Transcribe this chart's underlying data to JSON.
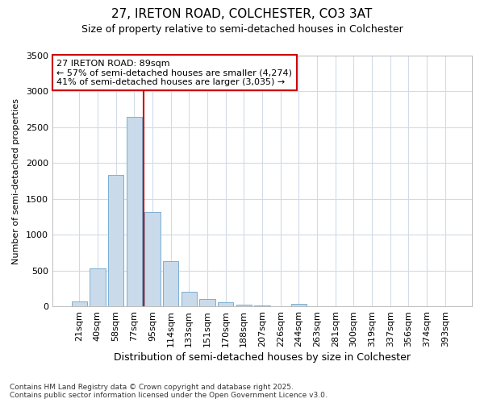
{
  "title1": "27, IRETON ROAD, COLCHESTER, CO3 3AT",
  "title2": "Size of property relative to semi-detached houses in Colchester",
  "xlabel": "Distribution of semi-detached houses by size in Colchester",
  "ylabel": "Number of semi-detached properties",
  "footer1": "Contains HM Land Registry data © Crown copyright and database right 2025.",
  "footer2": "Contains public sector information licensed under the Open Government Licence v3.0.",
  "bins": [
    "21sqm",
    "40sqm",
    "58sqm",
    "77sqm",
    "95sqm",
    "114sqm",
    "133sqm",
    "151sqm",
    "170sqm",
    "188sqm",
    "207sqm",
    "226sqm",
    "244sqm",
    "263sqm",
    "281sqm",
    "300sqm",
    "319sqm",
    "337sqm",
    "356sqm",
    "374sqm",
    "393sqm"
  ],
  "values": [
    65,
    530,
    1840,
    2650,
    1320,
    635,
    200,
    105,
    55,
    25,
    10,
    3,
    35,
    5,
    0,
    0,
    0,
    0,
    0,
    0,
    0
  ],
  "bar_color": "#c9daea",
  "bar_edge_color": "#7bafd4",
  "grid_color": "#d0dbe8",
  "bg_color": "#ffffff",
  "plot_bg_color": "#ffffff",
  "annotation_box_color": "#ffffff",
  "annotation_border_color": "#cc0000",
  "property_line_color": "#cc0000",
  "property_line_x": 4,
  "annotation_text1": "27 IRETON ROAD: 89sqm",
  "annotation_text2": "← 57% of semi-detached houses are smaller (4,274)",
  "annotation_text3": "41% of semi-detached houses are larger (3,035) →",
  "ylim": [
    0,
    3500
  ],
  "yticks": [
    0,
    500,
    1000,
    1500,
    2000,
    2500,
    3000,
    3500
  ],
  "title1_fontsize": 11,
  "title2_fontsize": 9,
  "xlabel_fontsize": 9,
  "ylabel_fontsize": 8,
  "tick_fontsize": 8,
  "annotation_fontsize": 8,
  "footer_fontsize": 6.5
}
